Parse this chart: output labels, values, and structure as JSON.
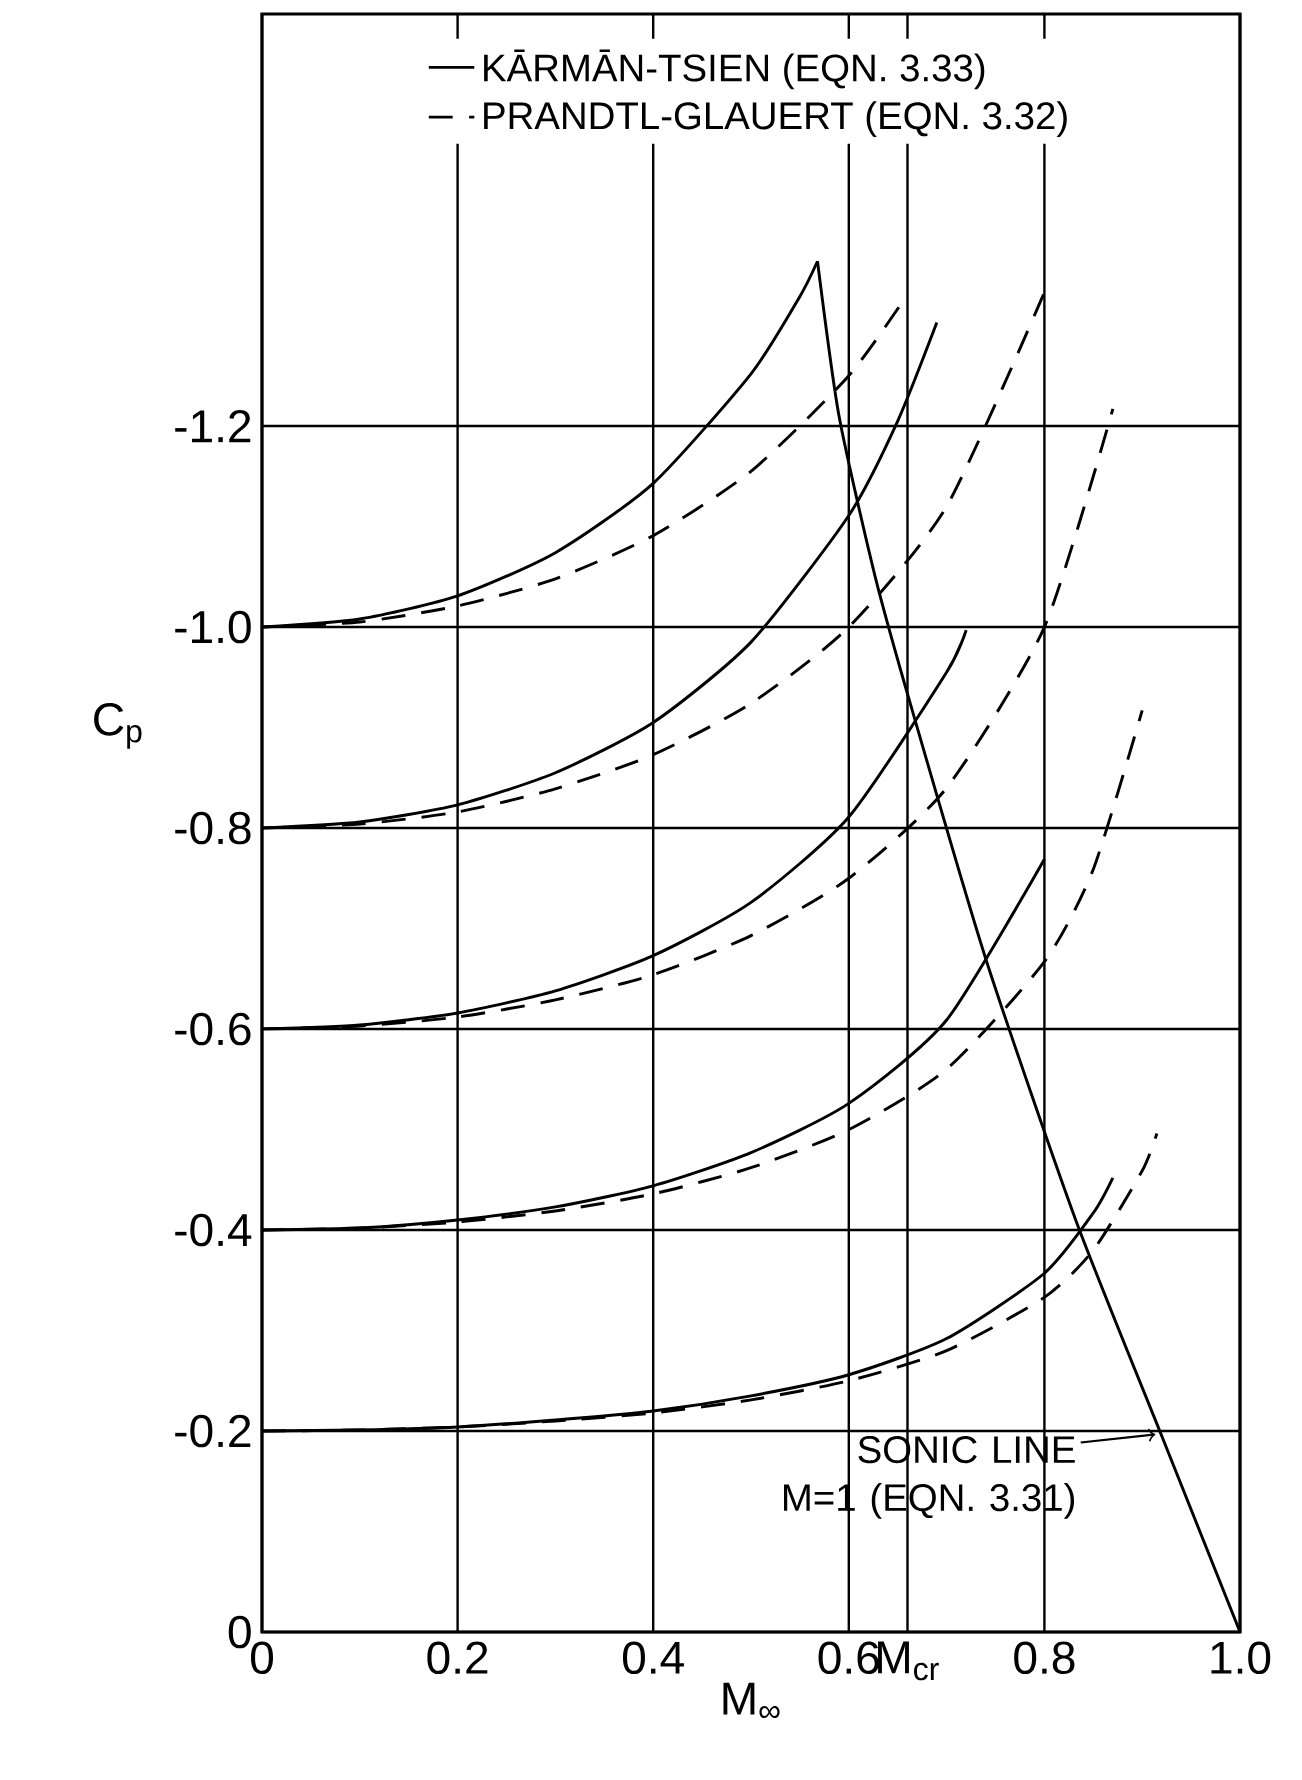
{
  "chart_data": {
    "type": "line",
    "xlabel": "M$_{∞}$",
    "ylabel": "C$_{p}$",
    "xlim": [
      0,
      1
    ],
    "ylim": [
      0,
      -1.61
    ],
    "xticks": [
      0,
      0.2,
      0.4,
      0.6,
      {
        "value": 0.66,
        "label": "M$_{cr}$"
      },
      0.8,
      {
        "value": 1,
        "label": "1.0"
      }
    ],
    "yticks": [
      0,
      -0.2,
      -0.4,
      -0.6,
      -0.8,
      {
        "value": -1,
        "label": "-1.0"
      },
      -1.2
    ],
    "grid": true,
    "legend": "top",
    "marker": "none",
    "series": [
      {
        "name": "KĀRMĀN-TSIEN (EQN. 3.33)",
        "color": "#000000",
        "line_style": "solid",
        "x": [
          0,
          0.1,
          0.2,
          0.3,
          0.4,
          0.5,
          0.55,
          0.568
        ],
        "values": [
          -1.0,
          -1.008,
          -1.031,
          -1.074,
          -1.143,
          -1.252,
          -1.329,
          -1.364
        ]
      },
      {
        "name": "PRANDTL-GLAUERT (EQN. 3.32)",
        "color": "#000000",
        "line_style": "dashed",
        "x": [
          0,
          0.1,
          0.2,
          0.3,
          0.4,
          0.5,
          0.6,
          0.66
        ],
        "values": [
          -1.0,
          -1.005,
          -1.021,
          -1.048,
          -1.091,
          -1.155,
          -1.25,
          -1.331
        ]
      },
      {
        "color": "#000000",
        "line_style": "solid",
        "x": [
          0,
          0.1,
          0.2,
          0.3,
          0.4,
          0.5,
          0.6,
          0.65,
          0.69
        ],
        "values": [
          -0.8,
          -0.806,
          -0.823,
          -0.855,
          -0.905,
          -0.985,
          -1.111,
          -1.205,
          -1.303
        ]
      },
      {
        "color": "#000000",
        "line_style": "dashed",
        "x": [
          0,
          0.1,
          0.2,
          0.3,
          0.4,
          0.5,
          0.6,
          0.7,
          0.8
        ],
        "values": [
          -0.8,
          -0.804,
          -0.816,
          -0.839,
          -0.873,
          -0.924,
          -1.0,
          -1.12,
          -1.333
        ]
      },
      {
        "color": "#000000",
        "line_style": "solid",
        "x": [
          0,
          0.1,
          0.2,
          0.3,
          0.4,
          0.5,
          0.6,
          0.7,
          0.72
        ],
        "values": [
          -0.6,
          -0.604,
          -0.616,
          -0.638,
          -0.673,
          -0.726,
          -0.811,
          -0.955,
          -0.997
        ]
      },
      {
        "color": "#000000",
        "line_style": "dashed",
        "x": [
          0,
          0.1,
          0.2,
          0.3,
          0.4,
          0.5,
          0.6,
          0.7,
          0.8,
          0.87
        ],
        "values": [
          -0.6,
          -0.603,
          -0.612,
          -0.629,
          -0.654,
          -0.693,
          -0.75,
          -0.84,
          -1.0,
          -1.217
        ]
      },
      {
        "color": "#000000",
        "line_style": "solid",
        "x": [
          0,
          0.1,
          0.2,
          0.3,
          0.4,
          0.5,
          0.6,
          0.7,
          0.8
        ],
        "values": [
          -0.4,
          -0.402,
          -0.41,
          -0.423,
          -0.444,
          -0.477,
          -0.526,
          -0.609,
          -0.769
        ]
      },
      {
        "color": "#000000",
        "line_style": "dashed",
        "x": [
          0,
          0.1,
          0.2,
          0.3,
          0.4,
          0.5,
          0.6,
          0.7,
          0.8,
          0.85,
          0.9
        ],
        "values": [
          -0.4,
          -0.402,
          -0.408,
          -0.419,
          -0.436,
          -0.462,
          -0.5,
          -0.56,
          -0.667,
          -0.759,
          -0.917
        ]
      },
      {
        "color": "#000000",
        "line_style": "solid",
        "x": [
          0,
          0.1,
          0.2,
          0.3,
          0.4,
          0.5,
          0.6,
          0.7,
          0.8,
          0.85,
          0.87
        ],
        "values": [
          -0.2,
          -0.201,
          -0.204,
          -0.211,
          -0.22,
          -0.235,
          -0.256,
          -0.292,
          -0.357,
          -0.417,
          -0.452
        ]
      },
      {
        "color": "#000000",
        "line_style": "dashed",
        "x": [
          0,
          0.1,
          0.2,
          0.3,
          0.4,
          0.5,
          0.6,
          0.7,
          0.8,
          0.85,
          0.9,
          0.915
        ],
        "values": [
          -0.2,
          -0.201,
          -0.204,
          -0.21,
          -0.218,
          -0.231,
          -0.25,
          -0.28,
          -0.333,
          -0.38,
          -0.459,
          -0.496
        ]
      },
      {
        "color": "#000000",
        "line_style": "solid",
        "x": [
          0.568,
          0.59,
          0.627,
          0.664,
          0.74,
          0.832,
          0.92,
          1.0
        ],
        "values": [
          -1.364,
          -1.21,
          -1.05,
          -0.92,
          -0.67,
          -0.41,
          -0.195,
          0
        ]
      }
    ],
    "annotations": [
      {
        "text": "SONIC LINE M=1 (EQN. 3.31)",
        "x": 0.92,
        "y": -0.195
      }
    ]
  }
}
